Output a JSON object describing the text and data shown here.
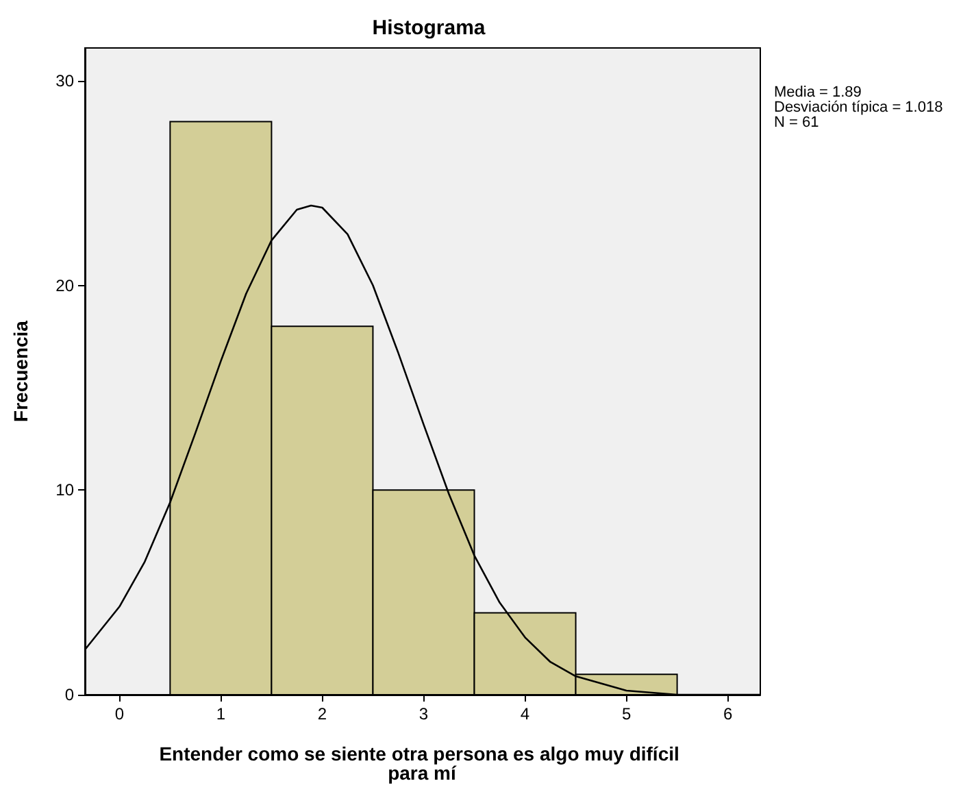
{
  "chart_data": {
    "type": "histogram",
    "title": "Histograma",
    "xlabel": "Entender como se siente otra persona es algo muy difícil para mí",
    "ylabel": "Frecuencia",
    "annotations": [
      "Media = 1.89",
      "Desviación típica = 1.018",
      "N = 61"
    ],
    "xlim": [
      -0.34,
      6.32
    ],
    "xticks": [
      0,
      1,
      2,
      3,
      4,
      5,
      6
    ],
    "ylim": [
      0,
      31.6
    ],
    "yticks": [
      0,
      10,
      20,
      30
    ],
    "grid": false,
    "marker": "none",
    "series": [
      {
        "color": "#d3ce97",
        "bins": [
          0.5,
          1.5,
          2.5,
          3.5,
          4.5,
          5.5
        ],
        "values": [
          28,
          18,
          10,
          4,
          1
        ]
      },
      {
        "type": "line",
        "color": "#000000",
        "x": [
          -0.34,
          0,
          0.25,
          0.5,
          0.75,
          1,
          1.25,
          1.5,
          1.75,
          1.89,
          2,
          2.25,
          2.5,
          2.75,
          3,
          3.25,
          3.5,
          3.75,
          4,
          4.25,
          4.5,
          5,
          5.5,
          6,
          6.32
        ],
        "values": [
          2.2,
          4.3,
          6.5,
          9.4,
          12.8,
          16.3,
          19.6,
          22.2,
          23.7,
          23.9,
          23.8,
          22.5,
          20.0,
          16.7,
          13.2,
          9.8,
          6.8,
          4.5,
          2.8,
          1.6,
          0.9,
          0.2,
          0.0,
          0.0,
          0.0
        ]
      }
    ]
  }
}
